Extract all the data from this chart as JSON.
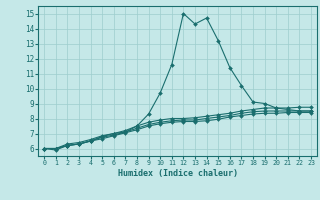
{
  "xlabel": "Humidex (Indice chaleur)",
  "xlim": [
    -0.5,
    23.5
  ],
  "ylim": [
    5.5,
    15.5
  ],
  "xticks": [
    0,
    1,
    2,
    3,
    4,
    5,
    6,
    7,
    8,
    9,
    10,
    11,
    12,
    13,
    14,
    15,
    16,
    17,
    18,
    19,
    20,
    21,
    22,
    23
  ],
  "yticks": [
    6,
    7,
    8,
    9,
    10,
    11,
    12,
    13,
    14,
    15
  ],
  "bg_color": "#c5e8e8",
  "grid_color": "#9ecece",
  "line_color": "#1a6e6e",
  "lines": [
    [
      6.0,
      5.9,
      6.2,
      6.3,
      6.5,
      6.8,
      7.0,
      7.1,
      7.5,
      8.3,
      9.7,
      11.6,
      15.0,
      14.3,
      14.7,
      13.2,
      11.4,
      10.2,
      9.1,
      9.0,
      8.7,
      8.6,
      8.5,
      8.5
    ],
    [
      6.0,
      6.0,
      6.3,
      6.4,
      6.6,
      6.85,
      7.0,
      7.2,
      7.5,
      7.75,
      7.9,
      8.0,
      8.0,
      8.05,
      8.15,
      8.25,
      8.35,
      8.5,
      8.6,
      8.7,
      8.7,
      8.7,
      8.75,
      8.75
    ],
    [
      6.0,
      6.0,
      6.2,
      6.3,
      6.5,
      6.75,
      6.9,
      7.1,
      7.35,
      7.6,
      7.75,
      7.85,
      7.9,
      7.9,
      8.0,
      8.1,
      8.2,
      8.35,
      8.45,
      8.5,
      8.5,
      8.5,
      8.5,
      8.5
    ],
    [
      6.0,
      6.0,
      6.2,
      6.3,
      6.5,
      6.65,
      6.85,
      7.05,
      7.25,
      7.5,
      7.65,
      7.75,
      7.8,
      7.8,
      7.85,
      7.95,
      8.1,
      8.2,
      8.3,
      8.35,
      8.35,
      8.4,
      8.4,
      8.4
    ]
  ]
}
